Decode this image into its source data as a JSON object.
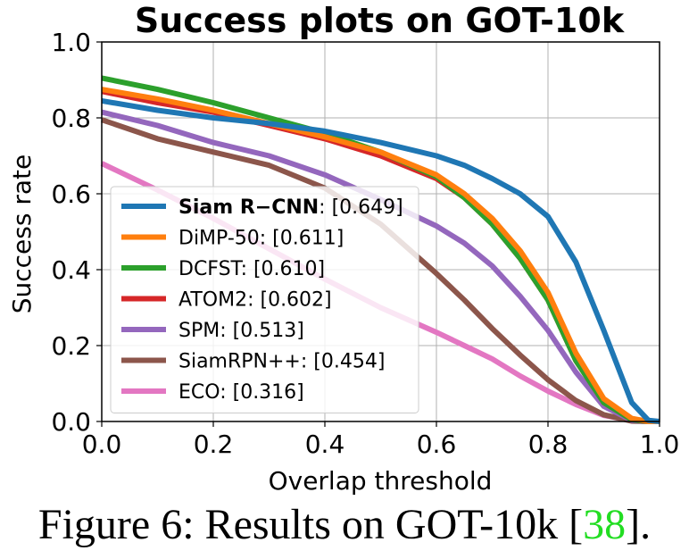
{
  "chart_data": {
    "type": "line",
    "title": "Success plots on GOT-10k",
    "xlabel": "Overlap threshold",
    "ylabel": "Success rate",
    "xlim": [
      0.0,
      1.0
    ],
    "ylim": [
      0.0,
      1.0
    ],
    "xticks": [
      "0.0",
      "0.2",
      "0.4",
      "0.6",
      "0.8",
      "1.0"
    ],
    "yticks": [
      "0.0",
      "0.2",
      "0.4",
      "0.6",
      "0.8",
      "1.0"
    ],
    "grid": true,
    "legend_position": "lower-left",
    "x": [
      0.0,
      0.1,
      0.2,
      0.3,
      0.4,
      0.5,
      0.6,
      0.65,
      0.7,
      0.75,
      0.8,
      0.85,
      0.9,
      0.95,
      0.98,
      1.0
    ],
    "series": [
      {
        "name": "Siam R−CNN",
        "score": "[0.649]",
        "bold_name": true,
        "color": "#1f77b4",
        "values": [
          0.845,
          0.82,
          0.8,
          0.785,
          0.765,
          0.735,
          0.7,
          0.675,
          0.64,
          0.6,
          0.54,
          0.42,
          0.24,
          0.05,
          0.003,
          0.0
        ]
      },
      {
        "name": "DiMP-50",
        "score": "[0.611]",
        "bold_name": false,
        "color": "#ff7f0e",
        "values": [
          0.875,
          0.85,
          0.82,
          0.785,
          0.75,
          0.71,
          0.65,
          0.6,
          0.535,
          0.45,
          0.34,
          0.18,
          0.06,
          0.008,
          0.0,
          0.0
        ]
      },
      {
        "name": "DCFST",
        "score": "[0.610]",
        "bold_name": false,
        "color": "#2ca02c",
        "values": [
          0.905,
          0.875,
          0.84,
          0.8,
          0.76,
          0.71,
          0.645,
          0.59,
          0.52,
          0.43,
          0.32,
          0.16,
          0.05,
          0.005,
          0.0,
          0.0
        ]
      },
      {
        "name": "ATOM2",
        "score": "[0.602]",
        "bold_name": false,
        "color": "#d62728",
        "values": [
          0.87,
          0.84,
          0.815,
          0.78,
          0.745,
          0.7,
          0.64,
          0.59,
          0.52,
          0.43,
          0.32,
          0.16,
          0.05,
          0.005,
          0.0,
          0.0
        ]
      },
      {
        "name": "SPM",
        "score": "[0.513]",
        "bold_name": false,
        "color": "#9467bd",
        "values": [
          0.815,
          0.78,
          0.735,
          0.7,
          0.65,
          0.585,
          0.515,
          0.47,
          0.41,
          0.33,
          0.24,
          0.13,
          0.04,
          0.003,
          0.0,
          0.0
        ]
      },
      {
        "name": "SiamRPN++",
        "score": "[0.454]",
        "bold_name": false,
        "color": "#8c564b",
        "values": [
          0.795,
          0.745,
          0.71,
          0.675,
          0.615,
          0.52,
          0.39,
          0.32,
          0.245,
          0.175,
          0.11,
          0.055,
          0.018,
          0.001,
          0.0,
          0.0
        ]
      },
      {
        "name": "ECO",
        "score": "[0.316]",
        "bold_name": false,
        "color": "#e377c2",
        "values": [
          0.68,
          0.61,
          0.535,
          0.455,
          0.375,
          0.3,
          0.235,
          0.2,
          0.165,
          0.12,
          0.08,
          0.045,
          0.016,
          0.002,
          0.0,
          0.0
        ]
      }
    ]
  },
  "caption": {
    "text": "Figure 6: Results on GOT-10k [",
    "ref": "38",
    "end": "]."
  }
}
